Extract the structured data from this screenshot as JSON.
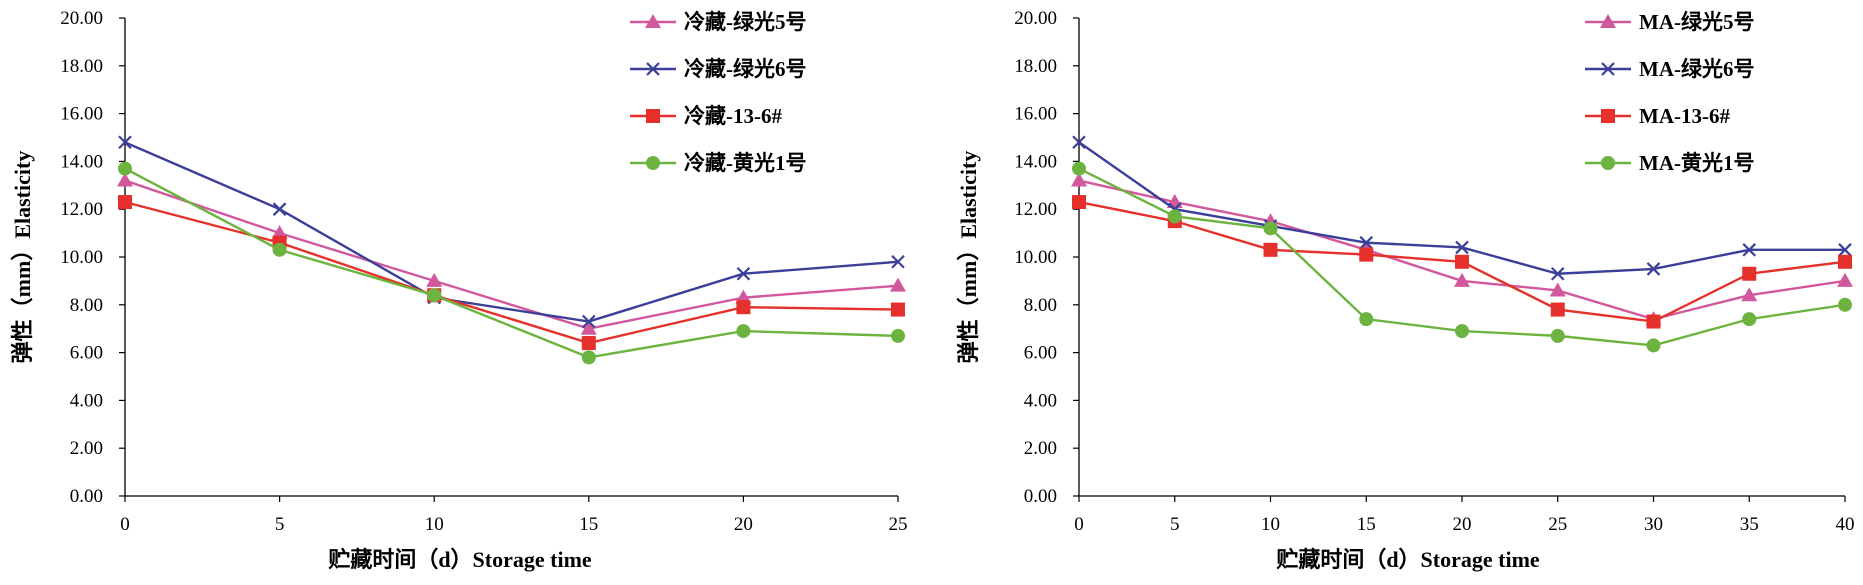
{
  "chart_data": [
    {
      "type": "line",
      "xlabel": "贮藏时间（d）Storage time",
      "ylabel": "弹性（mm）Elasticity",
      "x": [
        0,
        5,
        10,
        15,
        20,
        25
      ],
      "xlim": [
        0,
        25
      ],
      "ylim": [
        0,
        20
      ],
      "x_ticks": [
        "0",
        "5",
        "10",
        "15",
        "20",
        "25"
      ],
      "y_ticks": [
        "0.00",
        "2.00",
        "4.00",
        "6.00",
        "8.00",
        "10.00",
        "12.00",
        "14.00",
        "16.00",
        "18.00",
        "20.00"
      ],
      "grid": false,
      "legend_position": "top-right",
      "series": [
        {
          "name": "冷藏-绿光5号",
          "marker": "triangle",
          "color": "#d2589e",
          "values": [
            13.2,
            11.0,
            9.0,
            7.0,
            8.3,
            8.8
          ]
        },
        {
          "name": "冷藏-绿光6号",
          "marker": "x",
          "color": "#3b3f98",
          "values": [
            14.8,
            12.0,
            8.3,
            7.3,
            9.3,
            9.8
          ]
        },
        {
          "name": "冷藏-13-6#",
          "marker": "square",
          "color": "#e6302b",
          "values": [
            12.3,
            10.6,
            8.4,
            6.4,
            7.9,
            7.8
          ]
        },
        {
          "name": "冷藏-黄光1号",
          "marker": "circle",
          "color": "#6cb43f",
          "values": [
            13.7,
            10.3,
            8.4,
            5.8,
            6.9,
            6.7
          ]
        }
      ]
    },
    {
      "type": "line",
      "xlabel": "贮藏时间（d）Storage time",
      "ylabel": "弹性（mm）Elasticity",
      "x": [
        0,
        5,
        10,
        15,
        20,
        25,
        30,
        35,
        40
      ],
      "xlim": [
        0,
        40
      ],
      "ylim": [
        0,
        20
      ],
      "x_ticks": [
        "0",
        "5",
        "10",
        "15",
        "20",
        "25",
        "30",
        "35",
        "40"
      ],
      "y_ticks": [
        "0.00",
        "2.00",
        "4.00",
        "6.00",
        "8.00",
        "10.00",
        "12.00",
        "14.00",
        "16.00",
        "18.00",
        "20.00"
      ],
      "grid": false,
      "legend_position": "top-right",
      "series": [
        {
          "name": "MA-绿光5号",
          "marker": "triangle",
          "color": "#d2589e",
          "values": [
            13.2,
            12.3,
            11.5,
            10.3,
            9.0,
            8.6,
            7.4,
            8.4,
            9.0
          ]
        },
        {
          "name": "MA-绿光6号",
          "marker": "x",
          "color": "#3b3f98",
          "values": [
            14.8,
            12.0,
            11.3,
            10.6,
            10.4,
            9.3,
            9.5,
            10.3,
            10.3
          ]
        },
        {
          "name": "MA-13-6#",
          "marker": "square",
          "color": "#e6302b",
          "values": [
            12.3,
            11.5,
            10.3,
            10.1,
            9.8,
            7.8,
            7.3,
            9.3,
            9.8
          ]
        },
        {
          "name": "MA-黄光1号",
          "marker": "circle",
          "color": "#6cb43f",
          "values": [
            13.7,
            11.7,
            11.2,
            7.4,
            6.9,
            6.7,
            6.3,
            7.4,
            8.0
          ]
        }
      ]
    }
  ]
}
